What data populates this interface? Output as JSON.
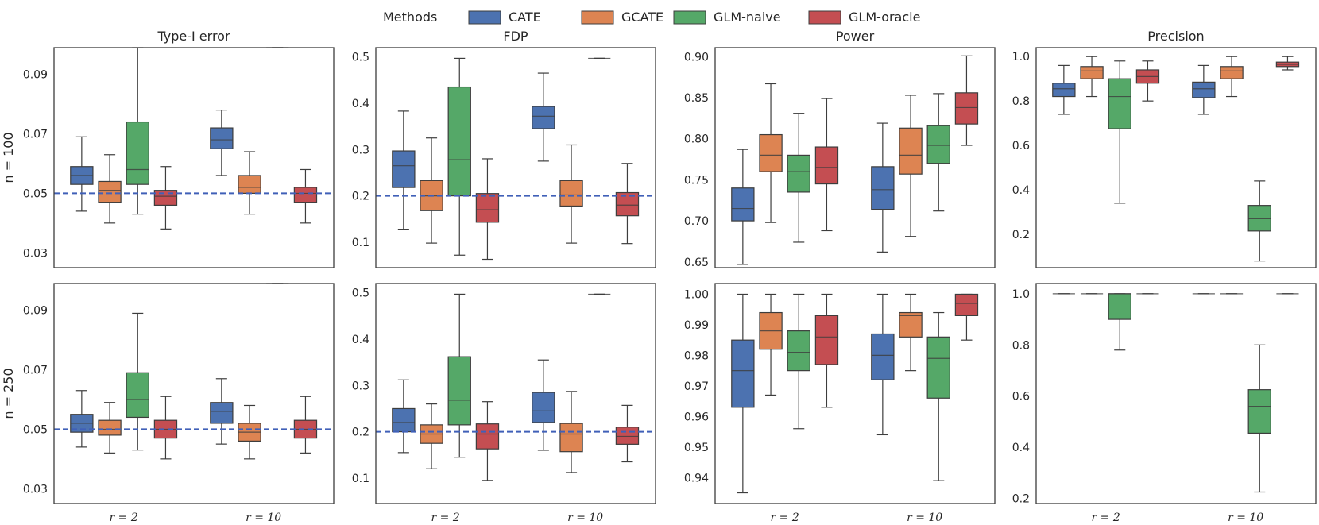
{
  "legend": {
    "title": "Methods",
    "entries": [
      {
        "name": "CATE",
        "color": "#4c72b0"
      },
      {
        "name": "GCATE",
        "color": "#dd8452"
      },
      {
        "name": "GLM-naive",
        "color": "#55a868"
      },
      {
        "name": "GLM-oracle",
        "color": "#c44e52"
      }
    ]
  },
  "chart_data": [
    {
      "type": "box",
      "row": 0,
      "col": 0,
      "title": "Type-I error",
      "ylabel": "n = 100",
      "ylim": [
        0.025,
        0.099
      ],
      "yticks": [
        0.03,
        0.05,
        0.07,
        0.09
      ],
      "ytick_labels": [
        "0.03",
        "0.05",
        "0.07",
        "0.09"
      ],
      "categories": [
        "r = 2",
        "r = 10"
      ],
      "hline": 0.05,
      "boxes": [
        [
          [
            0.044,
            0.053,
            0.056,
            0.059,
            0.069
          ],
          [
            0.04,
            0.047,
            0.051,
            0.054,
            0.063
          ],
          [
            0.043,
            0.053,
            0.058,
            0.074,
            0.099
          ],
          [
            0.038,
            0.046,
            0.049,
            0.051,
            0.059
          ]
        ],
        [
          [
            0.056,
            0.065,
            0.068,
            0.072,
            0.078
          ],
          [
            0.043,
            0.05,
            0.052,
            0.056,
            0.064
          ],
          [
            0.099,
            0.099,
            0.099,
            0.099,
            0.099
          ],
          [
            0.04,
            0.047,
            0.05,
            0.052,
            0.058
          ]
        ]
      ]
    },
    {
      "type": "box",
      "row": 0,
      "col": 1,
      "title": "FDP",
      "ylabel": "",
      "ylim": [
        0.045,
        0.52
      ],
      "yticks": [
        0.1,
        0.2,
        0.3,
        0.4,
        0.5
      ],
      "ytick_labels": [
        "0.1",
        "0.2",
        "0.3",
        "0.4",
        "0.5"
      ],
      "categories": [
        "r = 2",
        "r = 10"
      ],
      "hline": 0.2,
      "boxes": [
        [
          [
            0.128,
            0.218,
            0.265,
            0.297,
            0.383
          ],
          [
            0.098,
            0.168,
            0.2,
            0.233,
            0.325
          ],
          [
            0.072,
            0.2,
            0.278,
            0.435,
            0.497
          ],
          [
            0.063,
            0.143,
            0.17,
            0.205,
            0.28
          ]
        ],
        [
          [
            0.275,
            0.345,
            0.372,
            0.393,
            0.465
          ],
          [
            0.098,
            0.178,
            0.202,
            0.233,
            0.31
          ],
          [
            0.497,
            0.497,
            0.497,
            0.497,
            0.497
          ],
          [
            0.097,
            0.157,
            0.18,
            0.207,
            0.27
          ]
        ]
      ]
    },
    {
      "type": "box",
      "row": 0,
      "col": 2,
      "title": "Power",
      "ylabel": "",
      "ylim": [
        0.643,
        0.911
      ],
      "yticks": [
        0.65,
        0.7,
        0.75,
        0.8,
        0.85,
        0.9
      ],
      "ytick_labels": [
        "0.65",
        "0.70",
        "0.75",
        "0.80",
        "0.85",
        "0.90"
      ],
      "categories": [
        "r = 2",
        "r = 10"
      ],
      "hline": null,
      "boxes": [
        [
          [
            0.647,
            0.7,
            0.715,
            0.74,
            0.787
          ],
          [
            0.698,
            0.76,
            0.78,
            0.805,
            0.867
          ],
          [
            0.674,
            0.735,
            0.76,
            0.78,
            0.831
          ],
          [
            0.688,
            0.745,
            0.765,
            0.79,
            0.849
          ]
        ],
        [
          [
            0.662,
            0.714,
            0.738,
            0.766,
            0.819
          ],
          [
            0.681,
            0.757,
            0.78,
            0.813,
            0.853
          ],
          [
            0.712,
            0.77,
            0.792,
            0.816,
            0.855
          ],
          [
            0.792,
            0.818,
            0.838,
            0.856,
            0.901
          ]
        ]
      ]
    },
    {
      "type": "box",
      "row": 0,
      "col": 3,
      "title": "Precision",
      "ylabel": "",
      "ylim": [
        0.05,
        1.04
      ],
      "yticks": [
        0.2,
        0.4,
        0.6,
        0.8,
        1.0
      ],
      "ytick_labels": [
        "0.2",
        "0.4",
        "0.6",
        "0.8",
        "1.0"
      ],
      "categories": [
        "r = 2",
        "r = 10"
      ],
      "hline": null,
      "boxes": [
        [
          [
            0.74,
            0.82,
            0.855,
            0.88,
            0.96
          ],
          [
            0.82,
            0.9,
            0.935,
            0.955,
            1.0
          ],
          [
            0.34,
            0.675,
            0.82,
            0.9,
            0.98
          ],
          [
            0.8,
            0.88,
            0.91,
            0.94,
            0.98
          ]
        ],
        [
          [
            0.74,
            0.815,
            0.855,
            0.885,
            0.96
          ],
          [
            0.82,
            0.9,
            0.935,
            0.955,
            1.0
          ],
          [
            0.08,
            0.215,
            0.27,
            0.33,
            0.44
          ],
          [
            0.94,
            0.955,
            0.965,
            0.975,
            1.0
          ]
        ]
      ]
    },
    {
      "type": "box",
      "row": 1,
      "col": 0,
      "title": "",
      "ylabel": "n = 250",
      "ylim": [
        0.025,
        0.099
      ],
      "yticks": [
        0.03,
        0.05,
        0.07,
        0.09
      ],
      "ytick_labels": [
        "0.03",
        "0.05",
        "0.07",
        "0.09"
      ],
      "categories": [
        "r = 2",
        "r = 10"
      ],
      "hline": 0.05,
      "boxes": [
        [
          [
            0.044,
            0.049,
            0.052,
            0.055,
            0.063
          ],
          [
            0.042,
            0.048,
            0.05,
            0.053,
            0.059
          ],
          [
            0.043,
            0.054,
            0.06,
            0.069,
            0.089
          ],
          [
            0.04,
            0.047,
            0.05,
            0.053,
            0.061
          ]
        ],
        [
          [
            0.045,
            0.052,
            0.056,
            0.059,
            0.067
          ],
          [
            0.04,
            0.046,
            0.049,
            0.052,
            0.058
          ],
          [
            0.099,
            0.099,
            0.099,
            0.099,
            0.099
          ],
          [
            0.042,
            0.047,
            0.05,
            0.053,
            0.061
          ]
        ]
      ]
    },
    {
      "type": "box",
      "row": 1,
      "col": 1,
      "title": "",
      "ylabel": "",
      "ylim": [
        0.045,
        0.52
      ],
      "yticks": [
        0.1,
        0.2,
        0.3,
        0.4,
        0.5
      ],
      "ytick_labels": [
        "0.1",
        "0.2",
        "0.3",
        "0.4",
        "0.5"
      ],
      "categories": [
        "r = 2",
        "r = 10"
      ],
      "hline": 0.2,
      "boxes": [
        [
          [
            0.155,
            0.2,
            0.22,
            0.25,
            0.312
          ],
          [
            0.12,
            0.175,
            0.195,
            0.215,
            0.26
          ],
          [
            0.145,
            0.215,
            0.268,
            0.362,
            0.497
          ],
          [
            0.095,
            0.163,
            0.195,
            0.217,
            0.265
          ]
        ],
        [
          [
            0.16,
            0.22,
            0.245,
            0.285,
            0.355
          ],
          [
            0.112,
            0.157,
            0.195,
            0.218,
            0.287
          ],
          [
            0.497,
            0.497,
            0.497,
            0.497,
            0.497
          ],
          [
            0.135,
            0.173,
            0.19,
            0.21,
            0.257
          ]
        ]
      ]
    },
    {
      "type": "box",
      "row": 1,
      "col": 2,
      "title": "",
      "ylabel": "",
      "ylim": [
        0.9315,
        1.0035
      ],
      "yticks": [
        0.94,
        0.95,
        0.96,
        0.97,
        0.98,
        0.99,
        1.0
      ],
      "ytick_labels": [
        "0.94",
        "0.95",
        "0.96",
        "0.97",
        "0.98",
        "0.99",
        "1.00"
      ],
      "categories": [
        "r = 2",
        "r = 10"
      ],
      "hline": null,
      "boxes": [
        [
          [
            0.935,
            0.963,
            0.975,
            0.985,
            1.0
          ],
          [
            0.967,
            0.982,
            0.988,
            0.994,
            1.0
          ],
          [
            0.956,
            0.975,
            0.981,
            0.988,
            1.0
          ],
          [
            0.963,
            0.977,
            0.986,
            0.993,
            1.0
          ]
        ],
        [
          [
            0.954,
            0.972,
            0.98,
            0.987,
            1.0
          ],
          [
            0.975,
            0.986,
            0.993,
            0.994,
            1.0
          ],
          [
            0.939,
            0.966,
            0.979,
            0.986,
            0.994
          ],
          [
            0.985,
            0.993,
            0.997,
            1.0,
            1.0
          ]
        ]
      ]
    },
    {
      "type": "box",
      "row": 1,
      "col": 3,
      "title": "",
      "ylabel": "",
      "ylim": [
        0.18,
        1.04
      ],
      "yticks": [
        0.2,
        0.4,
        0.6,
        0.8,
        1.0
      ],
      "ytick_labels": [
        "0.2",
        "0.4",
        "0.6",
        "0.8",
        "1.0"
      ],
      "categories": [
        "r = 2",
        "r = 10"
      ],
      "hline": null,
      "boxes": [
        [
          [
            1.0,
            1.0,
            1.0,
            1.0,
            1.0
          ],
          [
            1.0,
            1.0,
            1.0,
            1.0,
            1.0
          ],
          [
            0.78,
            0.9,
            1.0,
            1.0,
            1.0
          ],
          [
            1.0,
            1.0,
            1.0,
            1.0,
            1.0
          ]
        ],
        [
          [
            1.0,
            1.0,
            1.0,
            1.0,
            1.0
          ],
          [
            1.0,
            1.0,
            1.0,
            1.0,
            1.0
          ],
          [
            0.225,
            0.455,
            0.56,
            0.625,
            0.8
          ],
          [
            1.0,
            1.0,
            1.0,
            1.0,
            1.0
          ]
        ]
      ]
    }
  ]
}
